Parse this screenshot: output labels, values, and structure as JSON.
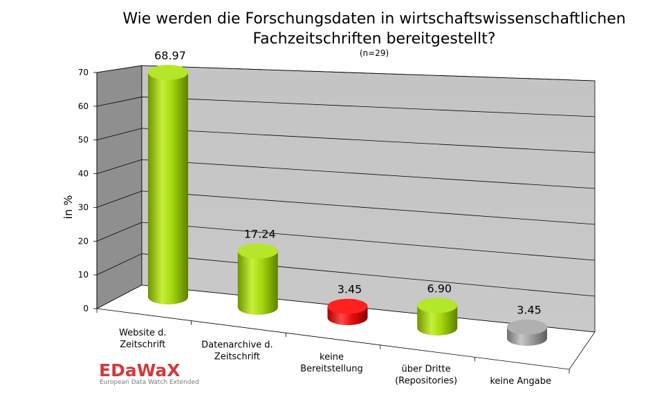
{
  "chart_data": {
    "type": "bar",
    "title": "Wie werden die Forschungsdaten in wirtschaftswissenschaftlichen Fachzeitschriften bereitgestellt?",
    "title_lines": [
      "Wie werden die Forschungsdaten in wirtschaftswissenschaftlichen",
      "Fachzeitschriften bereitgestellt?"
    ],
    "subtitle": "(n=29)",
    "xlabel": "",
    "ylabel": "in %",
    "ylim": [
      0,
      70
    ],
    "yticks": [
      0,
      10,
      20,
      30,
      40,
      50,
      60,
      70
    ],
    "grid": true,
    "categories": [
      [
        "Website d.",
        "Zeitschrift"
      ],
      [
        "Datenarchive d.",
        "Zeitschrift"
      ],
      [
        "keine",
        "Bereitstellung"
      ],
      [
        "über Dritte",
        "(Repositories)"
      ],
      [
        "keine Angabe"
      ]
    ],
    "values": [
      68.97,
      17.24,
      3.45,
      6.9,
      3.45
    ],
    "value_labels": [
      "68.97",
      "17.24",
      "3.45",
      "6.90",
      "3.45"
    ],
    "bar_colors": [
      "#9acd00",
      "#9acd00",
      "#e00000",
      "#9acd00",
      "#9a9a9a"
    ]
  },
  "logo": {
    "name": "EDaWaX",
    "tagline": "European Data Watch Extended"
  }
}
